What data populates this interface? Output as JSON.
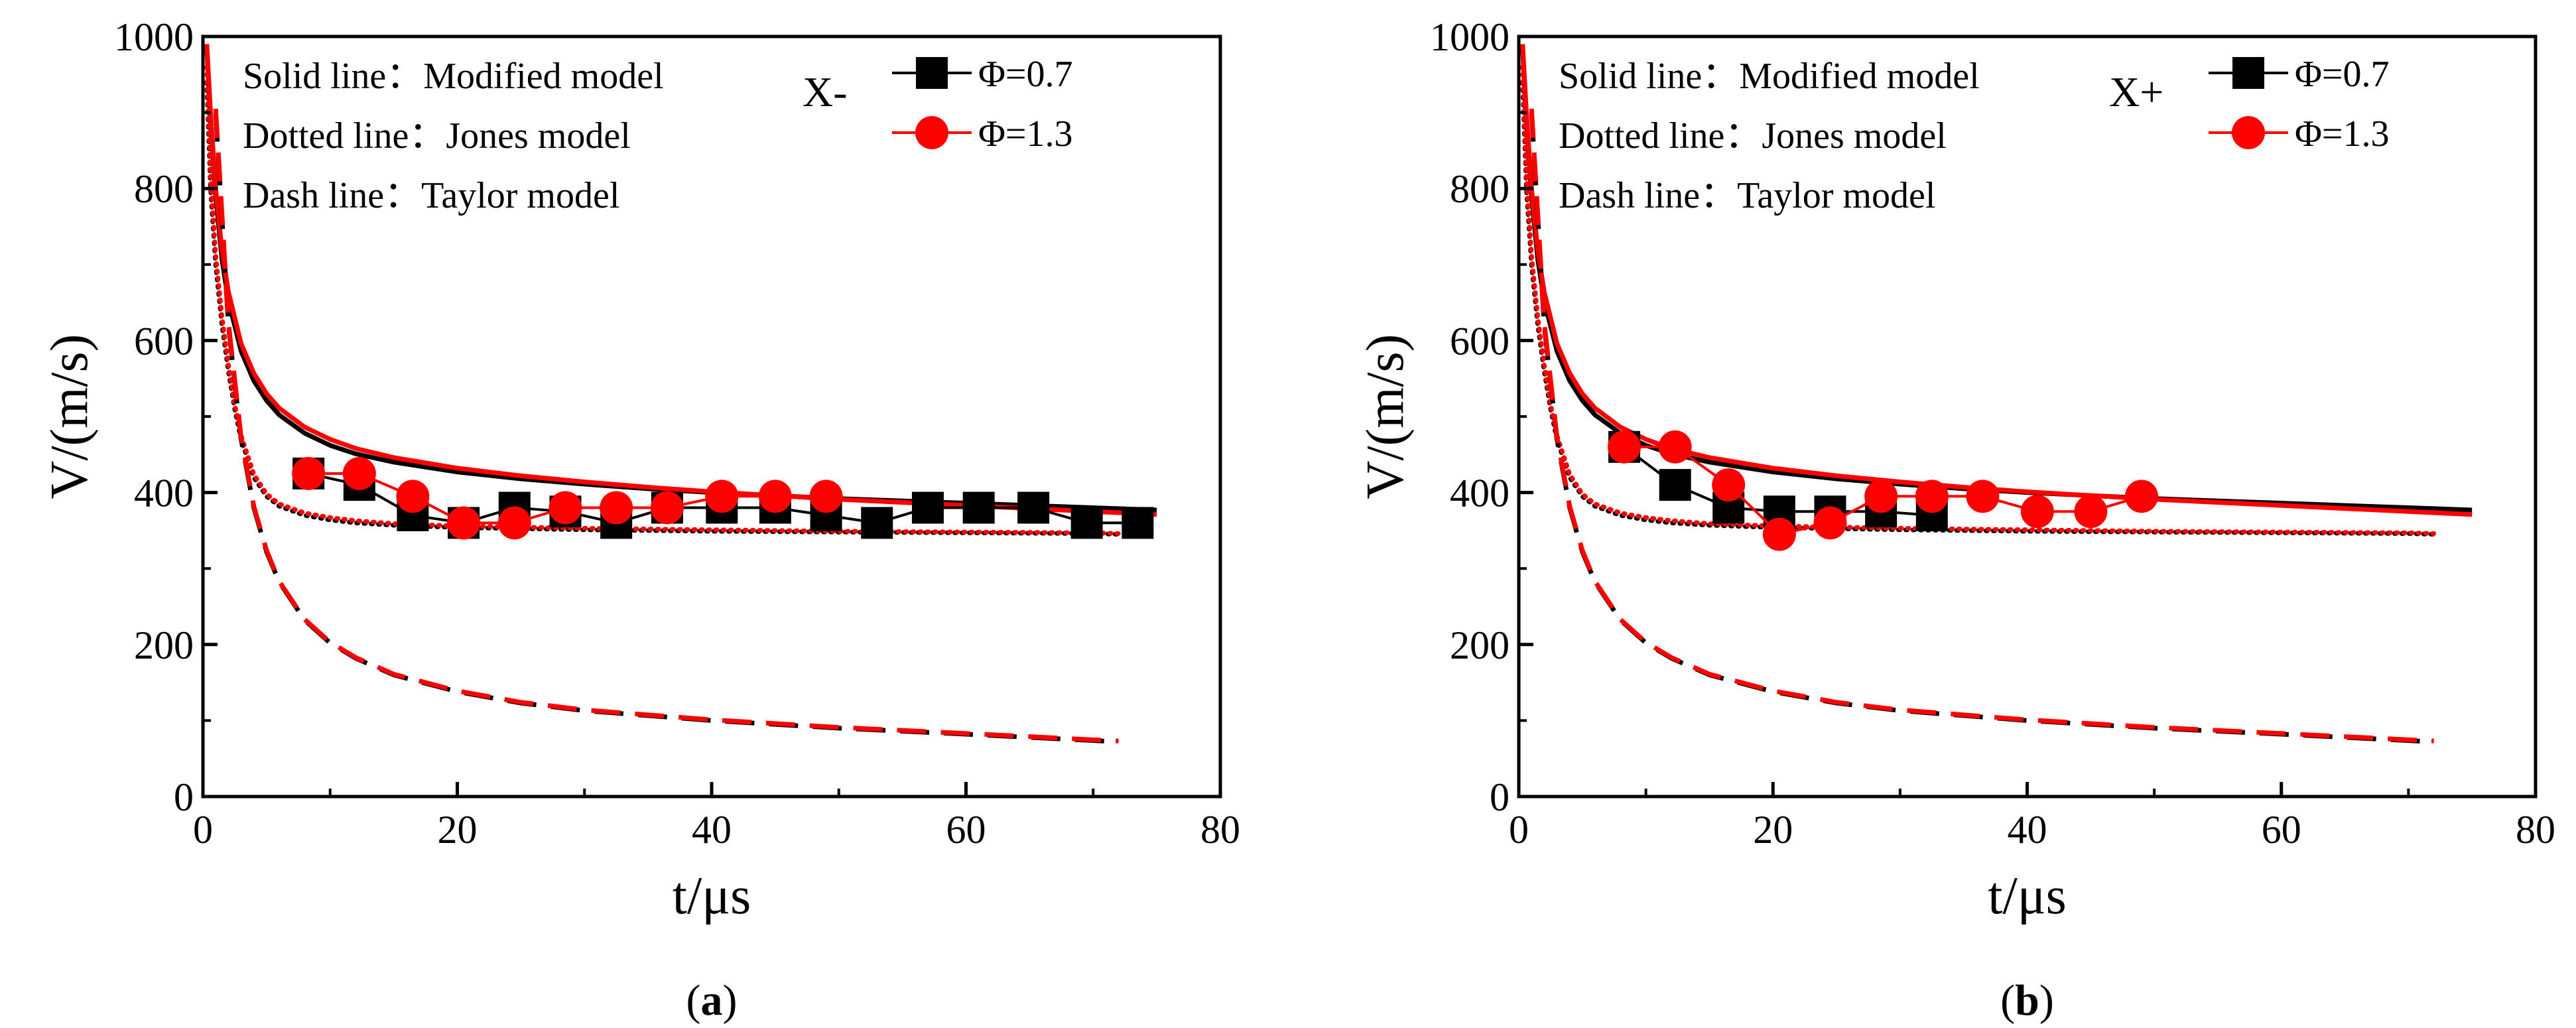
{
  "colors": {
    "phi07": "#000000",
    "phi13": "#ff0000",
    "axis": "#000000"
  },
  "chart_data": [
    {
      "type": "line",
      "panel_label": "a",
      "title": "",
      "direction_label": "X-",
      "xlabel": "t/μs",
      "ylabel": "V/(m/s)",
      "xlim": [
        0,
        80
      ],
      "ylim": [
        0,
        1000
      ],
      "xticks": [
        "0",
        "20",
        "40",
        "60",
        "80"
      ],
      "yticks": [
        "0",
        "200",
        "400",
        "600",
        "800",
        "1000"
      ],
      "annotations": [
        "Solid line：Modified model",
        "Dotted line：Jones model",
        "Dash line：Taylor model"
      ],
      "legend": [
        "Φ=0.7",
        "Φ=1.3"
      ],
      "legend_position": "top-right",
      "model_lines": [
        {
          "model": "Modified",
          "style": "solid",
          "series": "Φ=0.7",
          "x": [
            0.3,
            0.6,
            1,
            1.5,
            2,
            3,
            4,
            5,
            6,
            8,
            10,
            12,
            15,
            20,
            25,
            30,
            35,
            40,
            45,
            50,
            55,
            60,
            65,
            70,
            75
          ],
          "y": [
            985,
            890,
            790,
            706,
            652,
            586,
            547,
            521,
            502,
            478,
            462,
            451,
            440,
            427,
            418,
            411,
            405,
            400,
            396,
            392,
            389,
            386,
            383,
            380,
            377
          ]
        },
        {
          "model": "Modified",
          "style": "solid",
          "series": "Φ=1.3",
          "x": [
            0.3,
            0.6,
            1,
            1.5,
            2,
            3,
            4,
            5,
            6,
            8,
            10,
            12,
            15,
            20,
            25,
            30,
            35,
            40,
            45,
            50,
            55,
            60,
            65,
            70,
            75
          ],
          "y": [
            990,
            900,
            800,
            718,
            664,
            596,
            557,
            530,
            511,
            486,
            470,
            458,
            446,
            432,
            422,
            414,
            407,
            401,
            396,
            391,
            387,
            383,
            379,
            375,
            371
          ]
        },
        {
          "model": "Jones",
          "style": "dotted",
          "series": "Φ=0.7",
          "x": [
            0.3,
            0.6,
            1,
            1.5,
            2,
            2.5,
            3,
            4,
            5,
            6,
            8,
            10,
            12,
            15,
            20,
            30,
            40,
            50,
            60,
            70,
            72
          ],
          "y": [
            940,
            800,
            700,
            620,
            560,
            510,
            470,
            420,
            395,
            382,
            370,
            364,
            360,
            357,
            354,
            351,
            349,
            348,
            347,
            346,
            345
          ]
        },
        {
          "model": "Jones",
          "style": "dotted",
          "series": "Φ=1.3",
          "x": [
            0.3,
            0.6,
            1,
            1.5,
            2,
            2.5,
            3,
            4,
            5,
            6,
            8,
            10,
            12,
            15,
            20,
            30,
            40,
            50,
            60,
            70,
            72
          ],
          "y": [
            960,
            815,
            712,
            630,
            568,
            516,
            475,
            424,
            398,
            385,
            373,
            367,
            363,
            359,
            356,
            353,
            351,
            349,
            348,
            347,
            346
          ]
        },
        {
          "model": "Taylor",
          "style": "dashed",
          "series": "Φ=0.7",
          "x": [
            1,
            1.5,
            2,
            3,
            4,
            5,
            6,
            8,
            10,
            12,
            15,
            20,
            25,
            30,
            40,
            50,
            60,
            72
          ],
          "y": [
            900,
            760,
            620,
            470,
            380,
            322,
            282,
            232,
            202,
            182,
            160,
            138,
            123,
            113,
            100,
            90,
            82,
            72
          ]
        },
        {
          "model": "Taylor",
          "style": "dashed",
          "series": "Φ=1.3",
          "x": [
            1,
            1.5,
            2,
            3,
            4,
            5,
            6,
            8,
            10,
            12,
            15,
            20,
            25,
            30,
            40,
            50,
            60,
            72
          ],
          "y": [
            905,
            765,
            624,
            473,
            382,
            324,
            283,
            233,
            203,
            183,
            161,
            139,
            124,
            114,
            101,
            91,
            83,
            73
          ]
        }
      ],
      "series": [
        {
          "name": "Φ=0.7",
          "marker": "square",
          "x": [
            8.3,
            12.3,
            16.5,
            20.5,
            24.5,
            28.5,
            32.5,
            36.5,
            40.8,
            45,
            49,
            53,
            57,
            61,
            65.3,
            69.5,
            73.5
          ],
          "y": [
            425,
            410,
            370,
            360,
            380,
            375,
            360,
            380,
            380,
            380,
            370,
            360,
            380,
            380,
            380,
            360,
            360
          ]
        },
        {
          "name": "Φ=1.3",
          "marker": "circle",
          "x": [
            8.3,
            12.3,
            16.5,
            20.5,
            24.5,
            28.5,
            32.5,
            36.5,
            40.8,
            45,
            49
          ],
          "y": [
            425,
            425,
            395,
            360,
            360,
            380,
            380,
            380,
            395,
            395,
            395
          ]
        }
      ]
    },
    {
      "type": "line",
      "panel_label": "b",
      "title": "",
      "direction_label": "X+",
      "xlabel": "t/μs",
      "ylabel": "V/(m/s)",
      "xlim": [
        0,
        80
      ],
      "ylim": [
        0,
        1000
      ],
      "xticks": [
        "0",
        "20",
        "40",
        "60",
        "80"
      ],
      "yticks": [
        "0",
        "200",
        "400",
        "600",
        "800",
        "1000"
      ],
      "annotations": [
        "Solid line：Modified model",
        "Dotted line：Jones model",
        "Dash line：Taylor model"
      ],
      "legend": [
        "Φ=0.7",
        "Φ=1.3"
      ],
      "legend_position": "top-right",
      "model_lines": [
        {
          "model": "Modified",
          "style": "solid",
          "series": "Φ=0.7",
          "x": [
            0.3,
            0.6,
            1,
            1.5,
            2,
            3,
            4,
            5,
            6,
            8,
            10,
            12,
            15,
            20,
            25,
            30,
            35,
            40,
            45,
            50,
            55,
            60,
            65,
            70,
            75
          ],
          "y": [
            985,
            890,
            790,
            706,
            652,
            586,
            547,
            521,
            502,
            478,
            462,
            451,
            440,
            427,
            418,
            411,
            405,
            400,
            396,
            392,
            389,
            386,
            383,
            380,
            377
          ]
        },
        {
          "model": "Modified",
          "style": "solid",
          "series": "Φ=1.3",
          "x": [
            0.3,
            0.6,
            1,
            1.5,
            2,
            3,
            4,
            5,
            6,
            8,
            10,
            12,
            15,
            20,
            25,
            30,
            35,
            40,
            45,
            50,
            55,
            60,
            65,
            70,
            75
          ],
          "y": [
            990,
            900,
            800,
            718,
            664,
            596,
            557,
            530,
            511,
            486,
            470,
            458,
            446,
            432,
            422,
            414,
            407,
            401,
            396,
            391,
            387,
            383,
            379,
            375,
            371
          ]
        },
        {
          "model": "Jones",
          "style": "dotted",
          "series": "Φ=0.7",
          "x": [
            0.3,
            0.6,
            1,
            1.5,
            2,
            2.5,
            3,
            4,
            5,
            6,
            8,
            10,
            12,
            15,
            20,
            30,
            40,
            50,
            60,
            70,
            72
          ],
          "y": [
            940,
            800,
            700,
            620,
            560,
            510,
            470,
            420,
            395,
            382,
            370,
            364,
            360,
            357,
            354,
            351,
            349,
            348,
            347,
            346,
            345
          ]
        },
        {
          "model": "Jones",
          "style": "dotted",
          "series": "Φ=1.3",
          "x": [
            0.3,
            0.6,
            1,
            1.5,
            2,
            2.5,
            3,
            4,
            5,
            6,
            8,
            10,
            12,
            15,
            20,
            30,
            40,
            50,
            60,
            70,
            72
          ],
          "y": [
            960,
            815,
            712,
            630,
            568,
            516,
            475,
            424,
            398,
            385,
            373,
            367,
            363,
            359,
            356,
            353,
            351,
            349,
            348,
            347,
            346
          ]
        },
        {
          "model": "Taylor",
          "style": "dashed",
          "series": "Φ=0.7",
          "x": [
            1,
            1.5,
            2,
            3,
            4,
            5,
            6,
            8,
            10,
            12,
            15,
            20,
            25,
            30,
            40,
            50,
            60,
            72
          ],
          "y": [
            900,
            760,
            620,
            470,
            380,
            322,
            282,
            232,
            202,
            182,
            160,
            138,
            123,
            113,
            100,
            90,
            82,
            72
          ]
        },
        {
          "model": "Taylor",
          "style": "dashed",
          "series": "Φ=1.3",
          "x": [
            1,
            1.5,
            2,
            3,
            4,
            5,
            6,
            8,
            10,
            12,
            15,
            20,
            25,
            30,
            40,
            50,
            60,
            72
          ],
          "y": [
            905,
            765,
            624,
            473,
            382,
            324,
            283,
            233,
            203,
            183,
            161,
            139,
            124,
            114,
            101,
            91,
            83,
            73
          ]
        }
      ],
      "series": [
        {
          "name": "Φ=0.7",
          "marker": "square",
          "x": [
            8.3,
            12.3,
            16.5,
            20.5,
            24.5,
            28.5,
            32.5
          ],
          "y": [
            460,
            410,
            380,
            375,
            375,
            375,
            370
          ]
        },
        {
          "name": "Φ=1.3",
          "marker": "circle",
          "x": [
            8.3,
            12.3,
            16.5,
            20.5,
            24.5,
            28.5,
            32.5,
            36.5,
            40.8,
            45,
            49
          ],
          "y": [
            460,
            460,
            410,
            345,
            360,
            395,
            395,
            395,
            375,
            375,
            395
          ]
        }
      ]
    }
  ]
}
